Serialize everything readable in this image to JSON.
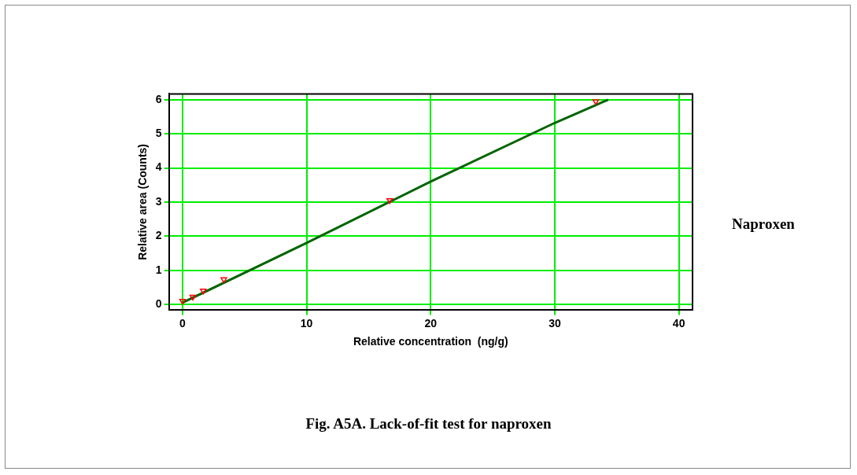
{
  "chart_data": {
    "type": "scatter",
    "title": "Fig. A5A. Lack-of-fit test for naproxen",
    "xlabel": "Relative concentration  (ng/g)",
    "ylabel": "Relative area (Counts)",
    "annotations": [
      "Naproxen"
    ],
    "series": [
      {
        "type": "scatter",
        "color": "#ff0000",
        "marker": "triangle",
        "x": [
          0,
          0.83,
          1.67,
          3.33,
          16.7,
          33.3
        ],
        "values": [
          0.1,
          0.22,
          0.4,
          0.73,
          3.05,
          5.95
        ]
      },
      {
        "type": "line",
        "color": "#006400",
        "marker": "none",
        "line_style": "solid",
        "x": [
          0,
          10,
          20,
          30,
          34.3
        ],
        "values": [
          0.05,
          1.8,
          3.6,
          5.32,
          6.0
        ]
      }
    ],
    "xlim": [
      -1.1,
      41.1
    ],
    "xticks": [
      0,
      10,
      20,
      30,
      40
    ],
    "ylim": [
      -0.17,
      6.17
    ],
    "yticks": [
      0,
      1,
      2,
      3,
      4,
      5,
      6
    ],
    "grid": true,
    "legend": false
  }
}
